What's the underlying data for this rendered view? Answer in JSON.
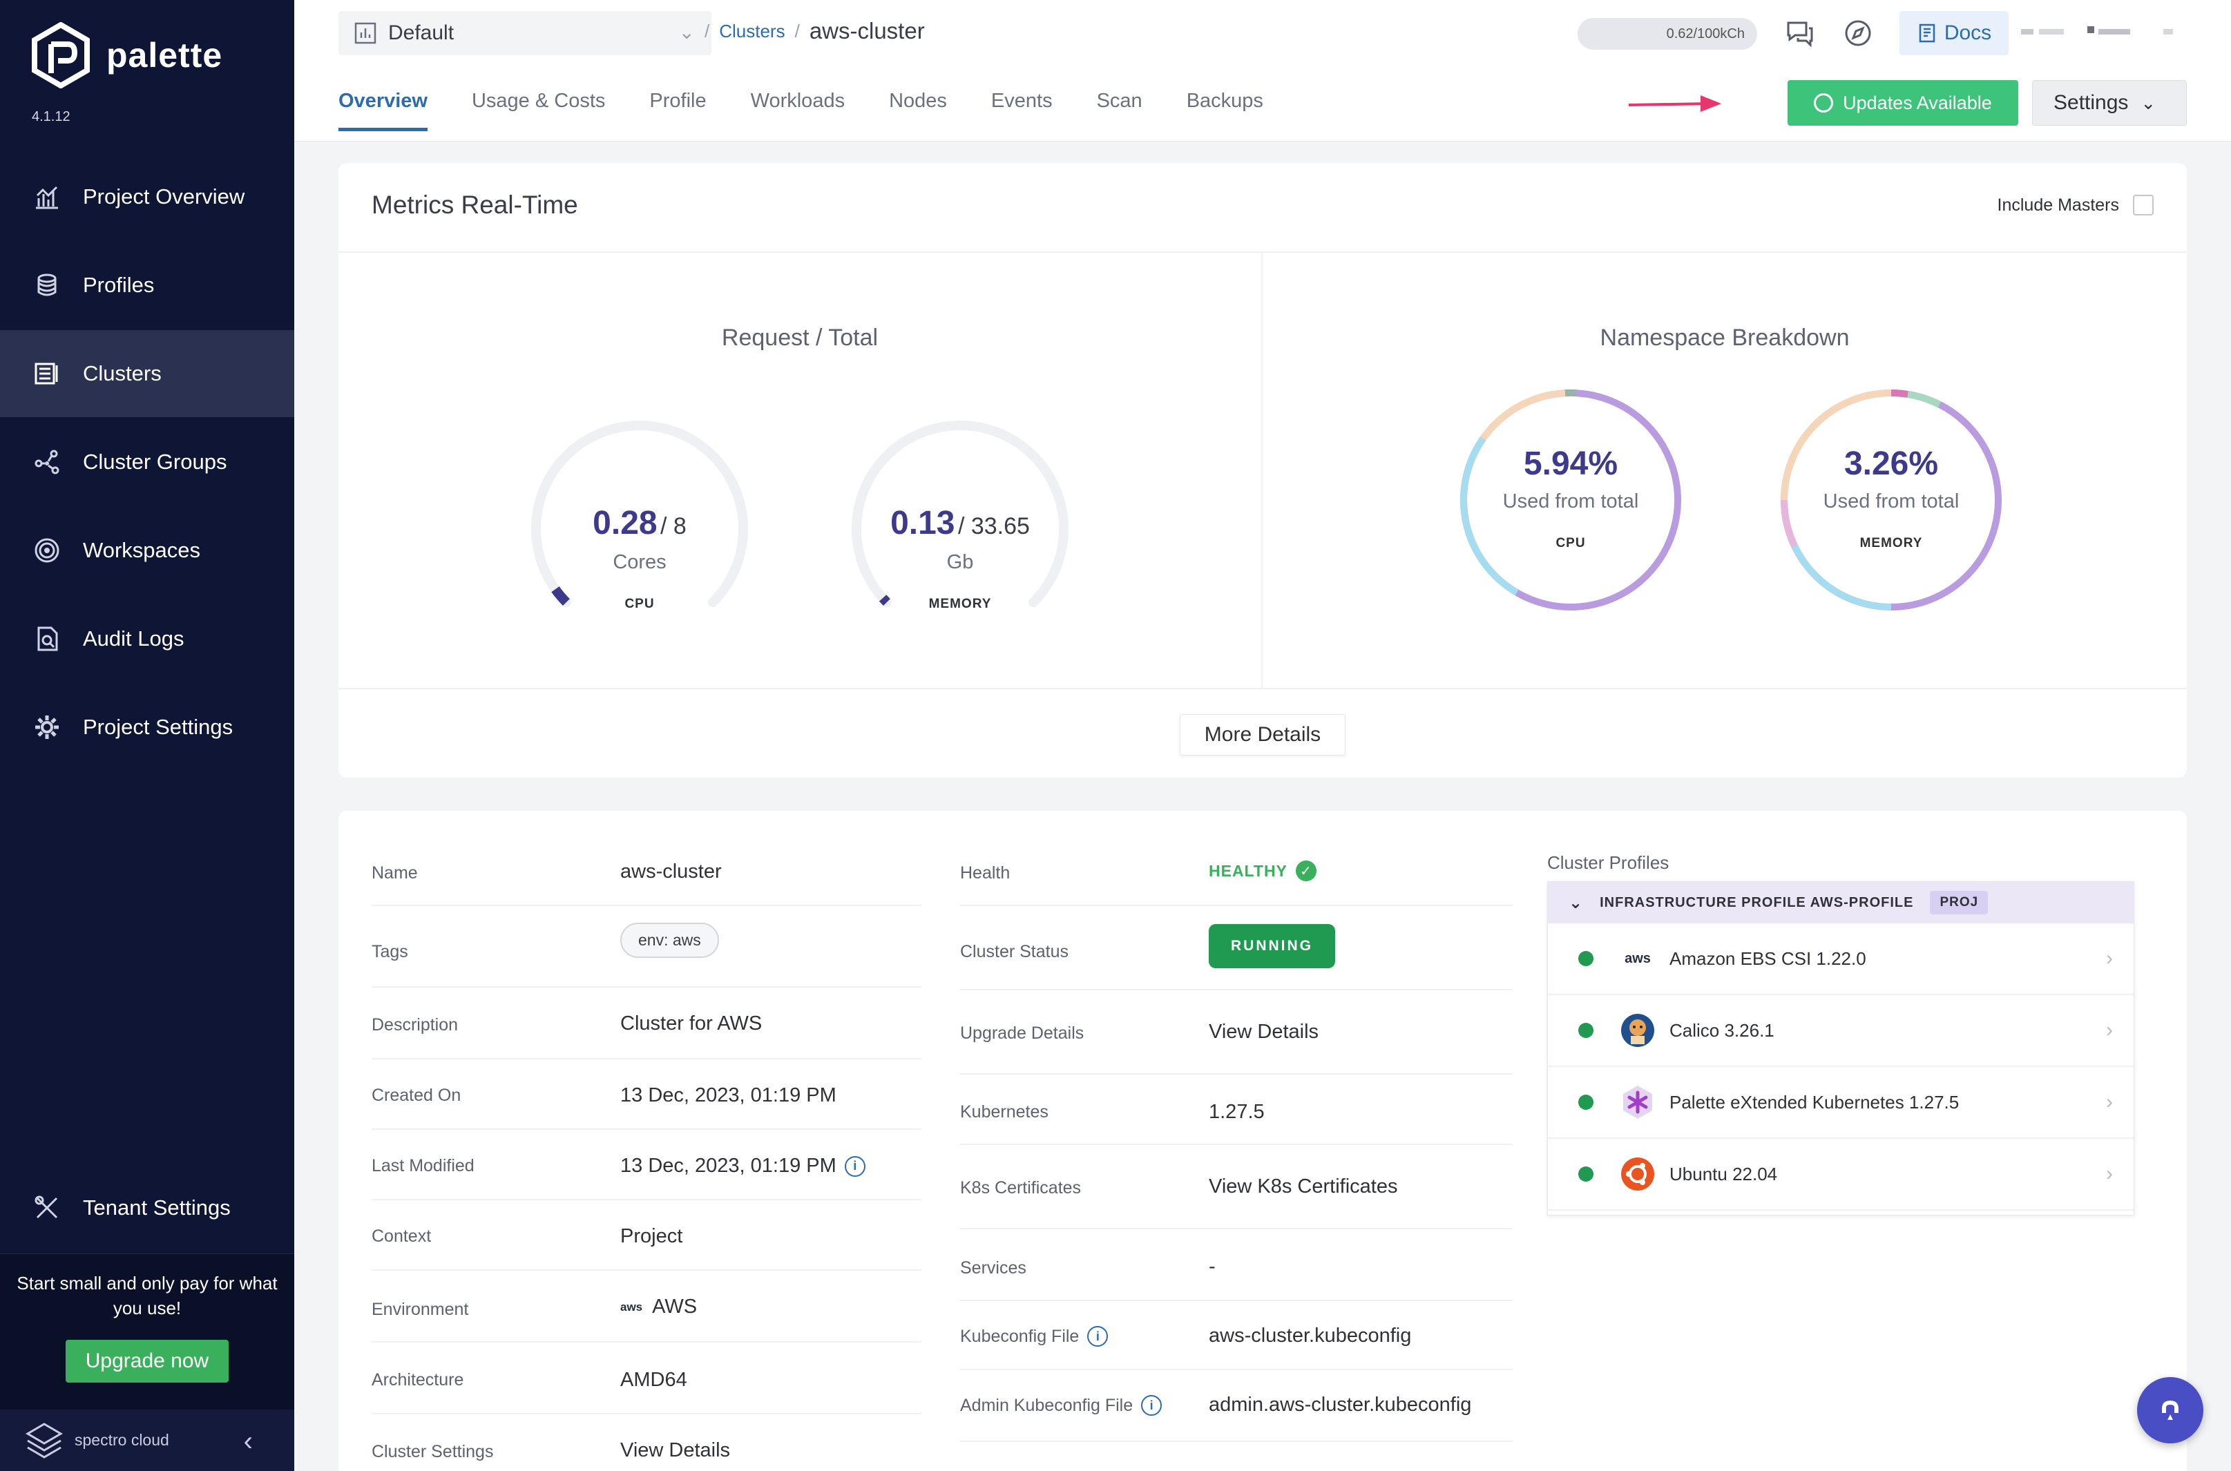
{
  "sidebar": {
    "brand": "palette",
    "version": "4.1.12",
    "items": [
      {
        "label": "Project Overview",
        "icon": "chart-icon"
      },
      {
        "label": "Profiles",
        "icon": "stack-icon"
      },
      {
        "label": "Clusters",
        "icon": "clusters-icon"
      },
      {
        "label": "Cluster Groups",
        "icon": "network-icon"
      },
      {
        "label": "Workspaces",
        "icon": "target-icon"
      },
      {
        "label": "Audit Logs",
        "icon": "audit-icon"
      },
      {
        "label": "Project Settings",
        "icon": "gear-icon"
      }
    ],
    "tenant_settings": "Tenant Settings",
    "promo_text": "Start small and only pay for what you use!",
    "upgrade_label": "Upgrade now",
    "footer_brand": "spectro cloud"
  },
  "header": {
    "project": "Default",
    "breadcrumb_parent": "Clusters",
    "breadcrumb_current": "aws-cluster",
    "credits": "0.62/100kCh",
    "docs_label": "Docs",
    "tabs": [
      "Overview",
      "Usage & Costs",
      "Profile",
      "Workloads",
      "Nodes",
      "Events",
      "Scan",
      "Backups"
    ],
    "active_tab": "Overview",
    "updates_label": "Updates Available",
    "settings_label": "Settings"
  },
  "metrics": {
    "title": "Metrics Real-Time",
    "include_masters": "Include Masters",
    "request_title": "Request / Total",
    "namespace_title": "Namespace Breakdown",
    "cpu_gauge": {
      "value": "0.28",
      "total": "/ 8",
      "unit": "Cores",
      "label": "CPU",
      "fraction": 0.035
    },
    "memory_gauge": {
      "value": "0.13",
      "total": "/ 33.65",
      "unit": "Gb",
      "label": "MEMORY",
      "fraction": 0.004
    },
    "cpu_donut": {
      "pct": "5.94%",
      "sub": "Used from total",
      "label": "CPU"
    },
    "memory_donut": {
      "pct": "3.26%",
      "sub": "Used from total",
      "label": "MEMORY"
    },
    "more_details": "More Details"
  },
  "details": {
    "left": [
      {
        "key": "Name",
        "value": "aws-cluster"
      },
      {
        "key": "Tags",
        "value": "env: aws"
      },
      {
        "key": "Description",
        "value": "Cluster for AWS"
      },
      {
        "key": "Created On",
        "value": "13 Dec, 2023, 01:19 PM"
      },
      {
        "key": "Last Modified",
        "value": "13 Dec, 2023, 01:19 PM"
      },
      {
        "key": "Context",
        "value": "Project"
      },
      {
        "key": "Environment",
        "value": "AWS"
      },
      {
        "key": "Architecture",
        "value": "AMD64"
      },
      {
        "key": "Cluster Settings",
        "value": "View Details"
      }
    ],
    "right": [
      {
        "key": "Health",
        "value": "HEALTHY"
      },
      {
        "key": "Cluster Status",
        "value": "RUNNING"
      },
      {
        "key": "Upgrade Details",
        "value": "View Details"
      },
      {
        "key": "Kubernetes",
        "value": "1.27.5"
      },
      {
        "key": "K8s Certificates",
        "value": "View K8s Certificates"
      },
      {
        "key": "Services",
        "value": "-"
      },
      {
        "key": "Kubeconfig File",
        "value": "aws-cluster.kubeconfig"
      },
      {
        "key": "Admin Kubeconfig File",
        "value": "admin.aws-cluster.kubeconfig"
      }
    ],
    "profiles_title": "Cluster Profiles",
    "profile_name": "INFRASTRUCTURE PROFILE AWS-PROFILE",
    "profile_scope": "PROJ",
    "packs": [
      {
        "name": "Amazon EBS CSI 1.22.0",
        "icon": "aws-icon"
      },
      {
        "name": "Calico 3.26.1",
        "icon": "calico-icon"
      },
      {
        "name": "Palette eXtended Kubernetes 1.27.5",
        "icon": "kubernetes-icon"
      },
      {
        "name": "Ubuntu 22.04",
        "icon": "ubuntu-icon"
      }
    ],
    "aws_logo_text": "aws"
  },
  "colors": {
    "accent": "#2b6cb0",
    "success": "#3aaf5c",
    "sidebar": "#0f1535",
    "updates": "#3dc47a"
  }
}
